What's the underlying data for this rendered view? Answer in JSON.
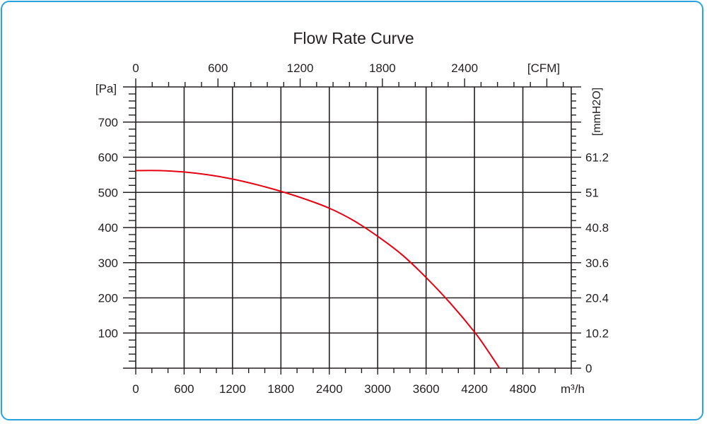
{
  "chart_data": {
    "type": "line",
    "title": "Flow Rate Curve",
    "xlabel": "m³/h",
    "ylabel": "[Pa]",
    "x2label": "[CFM]",
    "y2label": "[mmH2O]",
    "xlim": [
      0,
      5400
    ],
    "ylim": [
      0,
      800
    ],
    "x_ticks": [
      0,
      600,
      1200,
      1800,
      2400,
      3000,
      3600,
      4200,
      4800
    ],
    "y_ticks": [
      100,
      200,
      300,
      400,
      500,
      600,
      700
    ],
    "x2_ticks": [
      0,
      600,
      1200,
      1800,
      2400
    ],
    "y2_ticks": [
      "0",
      "10.2",
      "20.4",
      "30.6",
      "40.8",
      "51",
      "61.2"
    ],
    "grid": true,
    "series": [
      {
        "color": "#e60012",
        "x": [
          0,
          300,
          600,
          900,
          1200,
          1500,
          1800,
          2100,
          2400,
          2700,
          3000,
          3300,
          3600,
          3900,
          4200,
          4350,
          4510
        ],
        "y": [
          562,
          562,
          558,
          550,
          538,
          522,
          503,
          481,
          455,
          420,
          375,
          323,
          258,
          185,
          103,
          55,
          0
        ]
      }
    ]
  }
}
